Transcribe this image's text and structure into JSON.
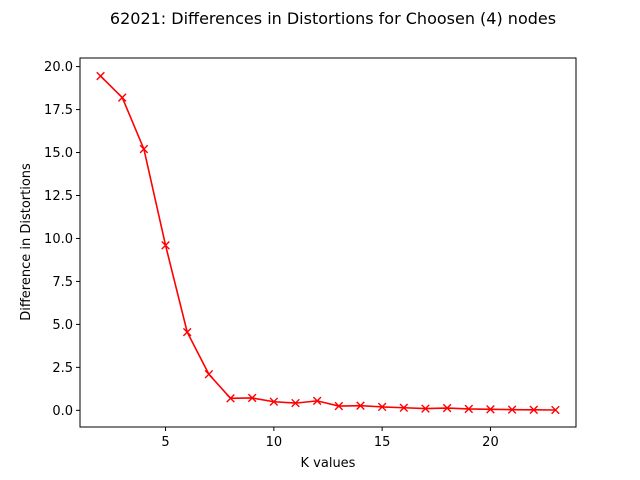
{
  "chart_data": {
    "type": "line",
    "title": "62021: Differences in Distortions for Choosen (4) nodes",
    "xlabel": "K values",
    "ylabel": "Difference in Distortions",
    "xlim": [
      1.05,
      23.95
    ],
    "ylim": [
      -0.97,
      20.5
    ],
    "xticks": [
      5,
      10,
      15,
      20
    ],
    "xtick_labels": [
      "5",
      "10",
      "15",
      "20"
    ],
    "yticks": [
      0,
      2.5,
      5,
      7.5,
      10,
      12.5,
      15,
      17.5,
      20
    ],
    "ytick_labels": [
      "0.0",
      "2.5",
      "5.0",
      "7.5",
      "10.0",
      "12.5",
      "15.0",
      "17.5",
      "20.0"
    ],
    "grid": false,
    "series": [
      {
        "color": "#ff0000",
        "marker": "x",
        "x": [
          2,
          3,
          4,
          5,
          6,
          7,
          8,
          9,
          10,
          11,
          12,
          13,
          14,
          15,
          16,
          17,
          18,
          19,
          20,
          21,
          22,
          23
        ],
        "y": [
          19.45,
          18.2,
          15.2,
          9.6,
          4.55,
          2.1,
          0.7,
          0.72,
          0.5,
          0.42,
          0.55,
          0.25,
          0.27,
          0.2,
          0.15,
          0.1,
          0.13,
          0.08,
          0.06,
          0.04,
          0.03,
          0.02
        ]
      }
    ]
  }
}
